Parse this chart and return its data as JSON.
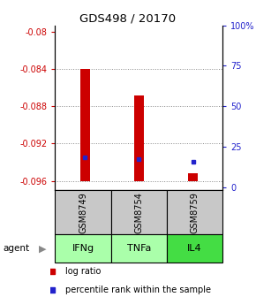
{
  "title": "GDS498 / 20170",
  "samples": [
    "GSM8749",
    "GSM8754",
    "GSM8759"
  ],
  "agents": [
    "IFNg",
    "TNFa",
    "IL4"
  ],
  "bar_bottoms": [
    -0.096,
    -0.096,
    -0.096
  ],
  "bar_tops": [
    -0.084,
    -0.0868,
    -0.0952
  ],
  "percentile_values": [
    -0.0935,
    -0.0937,
    -0.094
  ],
  "ylim_left": [
    -0.097,
    -0.0793
  ],
  "yticks_left": [
    -0.096,
    -0.092,
    -0.088,
    -0.084,
    -0.08
  ],
  "ytick_labels_left": [
    "-0.096",
    "-0.092",
    "-0.088",
    "-0.084",
    "-0.08"
  ],
  "ylim_right": [
    -1.5625,
    100
  ],
  "yticks_right": [
    0,
    25,
    50,
    75,
    100
  ],
  "ytick_labels_right": [
    "0",
    "25",
    "50",
    "75",
    "100%"
  ],
  "bar_color": "#cc0000",
  "pct_color": "#2222cc",
  "gsm_bg": "#c8c8c8",
  "agent_colors": [
    "#aaffaa",
    "#aaffaa",
    "#44dd44"
  ],
  "left_color": "#cc0000",
  "right_color": "#2222cc",
  "grid_color": "#888888",
  "bar_width": 0.18
}
